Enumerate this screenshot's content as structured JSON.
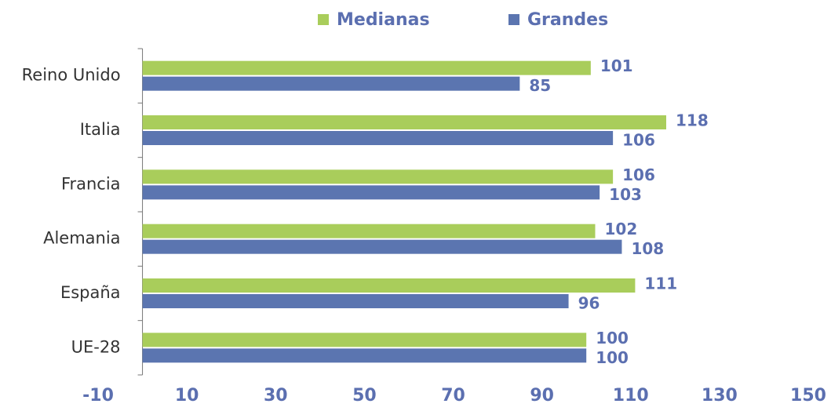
{
  "chart_data": {
    "type": "hbar",
    "categories": [
      "Reino Unido",
      "Italia",
      "Francia",
      "Alemania",
      "España",
      "UE-28"
    ],
    "series": [
      {
        "name": "Medianas",
        "color": "#a9cd5b",
        "values": [
          101,
          118,
          106,
          102,
          111,
          100
        ]
      },
      {
        "name": "Grandes",
        "color": "#5b75b0",
        "values": [
          85,
          106,
          103,
          108,
          96,
          100
        ]
      }
    ],
    "xlim": [
      -10,
      150
    ],
    "xticks": [
      -10,
      10,
      30,
      50,
      70,
      90,
      110,
      130,
      150
    ],
    "legend": "top"
  }
}
